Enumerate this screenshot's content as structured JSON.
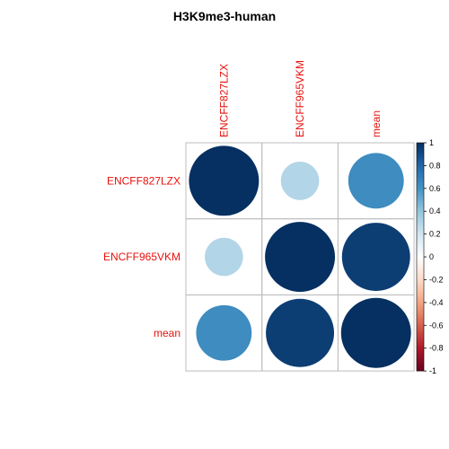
{
  "chart_data": {
    "type": "heatmap",
    "subtype": "corrplot-circle",
    "title": "H3K9me3-human",
    "row_labels": [
      "ENCFF827LZX",
      "ENCFF965VKM",
      "mean"
    ],
    "col_labels": [
      "ENCFF827LZX",
      "ENCFF965VKM",
      "mean"
    ],
    "values": [
      [
        1.0,
        0.3,
        0.63
      ],
      [
        0.3,
        1.0,
        0.95
      ],
      [
        0.63,
        0.95,
        1.0
      ]
    ],
    "colorbar": {
      "range": [
        -1,
        1
      ],
      "ticks": [
        "1",
        "0.8",
        "0.6",
        "0.4",
        "0.2",
        "0",
        "-0.2",
        "-0.4",
        "-0.6",
        "-0.8",
        "-1"
      ],
      "colors": [
        "#67001f",
        "#b2182b",
        "#d6604d",
        "#f4a582",
        "#fddbc7",
        "#ffffff",
        "#d1e5f0",
        "#92c5de",
        "#4393c3",
        "#2166ac",
        "#053061"
      ]
    },
    "grid": true,
    "legend": "right"
  }
}
